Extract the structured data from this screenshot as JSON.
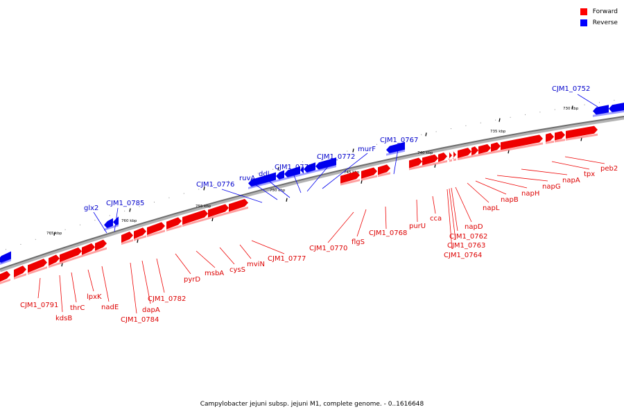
{
  "legend": {
    "forward_label": "Forward",
    "reverse_label": "Reverse",
    "forward_color": "#ff0000",
    "reverse_color": "#0000ff"
  },
  "caption": "Campylobacter jejuni subsp. jejuni M1, complete genome. - 0..1616648",
  "scale_ticks": [
    "730 kbp",
    "735 kbp",
    "740 kbp",
    "745 kbp",
    "750 kbp",
    "755 kbp",
    "760 kbp",
    "765 kbp"
  ],
  "forward_labels": [
    "CJM1_0791",
    "kdsB",
    "thrC",
    "lpxK",
    "nadE",
    "CJM1_0784",
    "dapA",
    "CJM1_0782",
    "pyrD",
    "msbA",
    "cysS",
    "mviN",
    "CJM1_0777",
    "CJM1_0770",
    "flgS",
    "CJM1_0768",
    "purU",
    "cca",
    "napD",
    "CJM1_0762",
    "CJM1_0763",
    "CJM1_0764",
    "napL",
    "napB",
    "napH",
    "napG",
    "napA",
    "tpx",
    "peb2"
  ],
  "reverse_labels": [
    "glx2",
    "CJM1_0785",
    "CJM1_0776",
    "ruvA",
    "ddl",
    "CJM1_0773",
    "CJM1_0772",
    "murF",
    "CJM1_0767",
    "CJM1_0752"
  ]
}
